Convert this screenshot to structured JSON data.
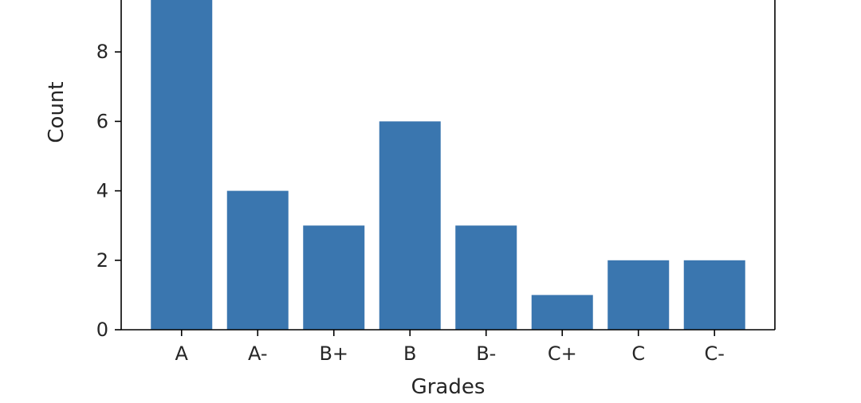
{
  "chart_data": {
    "type": "bar",
    "categories": [
      "A",
      "A-",
      "B+",
      "B",
      "B-",
      "C+",
      "C",
      "C-"
    ],
    "values": [
      10,
      4,
      3,
      6,
      3,
      1,
      2,
      2
    ],
    "xlabel": "Grades",
    "ylabel": "Count",
    "ylim": [
      0,
      9.5
    ],
    "yticks": [
      0,
      2,
      4,
      6,
      8
    ],
    "grid": false,
    "bar_color": "#3a76af"
  }
}
